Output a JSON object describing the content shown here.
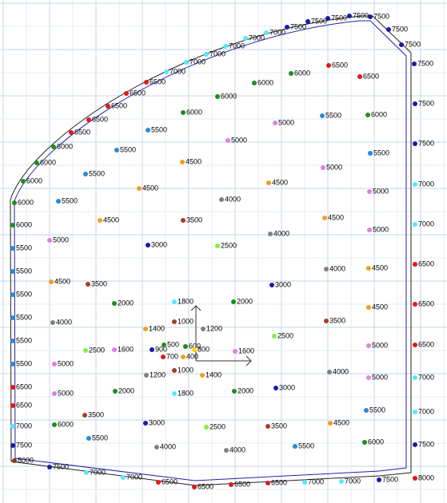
{
  "points": [
    {
      "label": "8000",
      "color": "#8b3a1a"
    },
    {
      "label": "7500",
      "color": "#1a1aa6"
    },
    {
      "label": "7000",
      "color": "#55e8ff"
    },
    {
      "label": "7000",
      "color": "#55e8ff"
    },
    {
      "label": "6500",
      "color": "#e01818"
    },
    {
      "label": "6500",
      "color": "#e01818"
    },
    {
      "label": "6500",
      "color": "#e01818"
    },
    {
      "label": "6500",
      "color": "#e01818"
    },
    {
      "label": "7000",
      "color": "#55e8ff"
    },
    {
      "label": "7000",
      "color": "#55e8ff"
    },
    {
      "label": "7500",
      "color": "#1a1aa6"
    },
    {
      "label": "8000",
      "color": "#e01818"
    },
    {
      "label": "6000",
      "color": "#1e8c1e"
    },
    {
      "label": "5500",
      "color": "#2a88dd"
    },
    {
      "label": "5500",
      "color": "#2a88dd"
    },
    {
      "label": "5500",
      "color": "#2a88dd"
    },
    {
      "label": "5500",
      "color": "#2a88dd"
    },
    {
      "label": "5500",
      "color": "#2a88dd"
    },
    {
      "label": "5500",
      "color": "#2a88dd"
    },
    {
      "label": "6500",
      "color": "#e01818"
    },
    {
      "label": "6500",
      "color": "#e01818"
    },
    {
      "label": "7000",
      "color": "#55e8ff"
    },
    {
      "label": "7500",
      "color": "#1a1aa6"
    },
    {
      "label": "6000",
      "color": "#1e8c1e"
    },
    {
      "label": "6000",
      "color": "#1e8c1e"
    },
    {
      "label": "6000",
      "color": "#1e8c1e"
    },
    {
      "label": "6000",
      "color": "#1e8c1e"
    },
    {
      "label": "6500",
      "color": "#e01818"
    },
    {
      "label": "6500",
      "color": "#e01818"
    },
    {
      "label": "6500",
      "color": "#e01818"
    },
    {
      "label": "6500",
      "color": "#e01818"
    },
    {
      "label": "6500",
      "color": "#e01818"
    },
    {
      "label": "7000",
      "color": "#55e8ff"
    },
    {
      "label": "7000",
      "color": "#55e8ff"
    },
    {
      "label": "7000",
      "color": "#55e8ff"
    },
    {
      "label": "7000",
      "color": "#55e8ff"
    },
    {
      "label": "7000",
      "color": "#55e8ff"
    },
    {
      "label": "7000",
      "color": "#55e8ff"
    },
    {
      "label": "7500",
      "color": "#1a1aa6"
    },
    {
      "label": "7500",
      "color": "#1a1aa6"
    },
    {
      "label": "7500",
      "color": "#1a1aa6"
    },
    {
      "label": "7500",
      "color": "#1a1aa6"
    },
    {
      "label": "7500",
      "color": "#1a1aa6"
    },
    {
      "label": "7500",
      "color": "#1a1aa6"
    },
    {
      "label": "7500",
      "color": "#1a1aa6"
    },
    {
      "label": "7500",
      "color": "#1a1aa6"
    },
    {
      "label": "7500",
      "color": "#1a1aa6"
    },
    {
      "label": "7500",
      "color": "#1a1aa6"
    },
    {
      "label": "7000",
      "color": "#55e8ff"
    },
    {
      "label": "7000",
      "color": "#55e8ff"
    },
    {
      "label": "6500",
      "color": "#e01818"
    },
    {
      "label": "6500",
      "color": "#e01818"
    },
    {
      "label": "6500",
      "color": "#e01818"
    },
    {
      "label": "7000",
      "color": "#55e8ff"
    },
    {
      "label": "7000",
      "color": "#55e8ff"
    },
    {
      "label": "7500",
      "color": "#1a1aa6"
    },
    {
      "label": "6500",
      "color": "#e01818"
    },
    {
      "label": "6500",
      "color": "#e01818"
    },
    {
      "label": "6000",
      "color": "#1e8c1e"
    },
    {
      "label": "6000",
      "color": "#1e8c1e"
    },
    {
      "label": "6000",
      "color": "#1e8c1e"
    },
    {
      "label": "6000",
      "color": "#1e8c1e"
    },
    {
      "label": "6000",
      "color": "#1e8c1e"
    },
    {
      "label": "5500",
      "color": "#2a88dd"
    },
    {
      "label": "5000",
      "color": "#e080e0"
    },
    {
      "label": "5500",
      "color": "#2a88dd"
    },
    {
      "label": "5500",
      "color": "#2a88dd"
    },
    {
      "label": "5000",
      "color": "#e080e0"
    },
    {
      "label": "5500",
      "color": "#2a88dd"
    },
    {
      "label": "5500",
      "color": "#2a88dd"
    },
    {
      "label": "4500",
      "color": "#f0a020"
    },
    {
      "label": "5000",
      "color": "#e080e0"
    },
    {
      "label": "4500",
      "color": "#f0a020"
    },
    {
      "label": "4500",
      "color": "#f0a020"
    },
    {
      "label": "5000",
      "color": "#e080e0"
    },
    {
      "label": "5500",
      "color": "#2a88dd"
    },
    {
      "label": "4000",
      "color": "#808080"
    },
    {
      "label": "4500",
      "color": "#f0a020"
    },
    {
      "label": "3500",
      "color": "#a0402a"
    },
    {
      "label": "4500",
      "color": "#f0a020"
    },
    {
      "label": "5000",
      "color": "#e080e0"
    },
    {
      "label": "4000",
      "color": "#808080"
    },
    {
      "label": "5000",
      "color": "#e080e0"
    },
    {
      "label": "3000",
      "color": "#1a1aa6"
    },
    {
      "label": "2500",
      "color": "#88ee44"
    },
    {
      "label": "4000",
      "color": "#808080"
    },
    {
      "label": "4500",
      "color": "#f0a020"
    },
    {
      "label": "4500",
      "color": "#f0a020"
    },
    {
      "label": "3500",
      "color": "#a0402a"
    },
    {
      "label": "3000",
      "color": "#1a1aa6"
    },
    {
      "label": "2000",
      "color": "#1e8c1e"
    },
    {
      "label": "1800",
      "color": "#55e8ff"
    },
    {
      "label": "2000",
      "color": "#1e8c1e"
    },
    {
      "label": "4500",
      "color": "#f0a020"
    },
    {
      "label": "4000",
      "color": "#808080"
    },
    {
      "label": "1000",
      "color": "#a0402a"
    },
    {
      "label": "1400",
      "color": "#f0a020"
    },
    {
      "label": "1200",
      "color": "#808080"
    },
    {
      "label": "3500",
      "color": "#a0402a"
    },
    {
      "label": "2500",
      "color": "#88ee44"
    },
    {
      "label": "2500",
      "color": "#88ee44"
    },
    {
      "label": "1600",
      "color": "#e080e0"
    },
    {
      "label": "900",
      "color": "#1a1aa6"
    },
    {
      "label": "600",
      "color": "#1e8c1e"
    },
    {
      "label": "800",
      "color": "#ffd700"
    },
    {
      "label": "500",
      "color": "#1e8c1e"
    },
    {
      "label": "700",
      "color": "#e01818"
    },
    {
      "label": "400",
      "color": "#f0a020"
    },
    {
      "label": "1600",
      "color": "#e080e0"
    },
    {
      "label": "5000",
      "color": "#e080e0"
    },
    {
      "label": "5000",
      "color": "#e080e0"
    },
    {
      "label": "4000",
      "color": "#808080"
    },
    {
      "label": "1200",
      "color": "#808080"
    },
    {
      "label": "1000",
      "color": "#a0402a"
    },
    {
      "label": "1400",
      "color": "#f0a020"
    },
    {
      "label": "5000",
      "color": "#e080e0"
    },
    {
      "label": "5000",
      "color": "#e080e0"
    },
    {
      "label": "2000",
      "color": "#1e8c1e"
    },
    {
      "label": "1800",
      "color": "#55e8ff"
    },
    {
      "label": "2000",
      "color": "#1e8c1e"
    },
    {
      "label": "3000",
      "color": "#1a1aa6"
    },
    {
      "label": "5500",
      "color": "#2a88dd"
    },
    {
      "label": "3500",
      "color": "#a0402a"
    },
    {
      "label": "6000",
      "color": "#1e8c1e"
    },
    {
      "label": "3000",
      "color": "#1a1aa6"
    },
    {
      "label": "2500",
      "color": "#88ee44"
    },
    {
      "label": "3500",
      "color": "#a0402a"
    },
    {
      "label": "4500",
      "color": "#f0a020"
    },
    {
      "label": "5500",
      "color": "#2a88dd"
    },
    {
      "label": "4000",
      "color": "#808080"
    },
    {
      "label": "4000",
      "color": "#808080"
    },
    {
      "label": "5500",
      "color": "#2a88dd"
    },
    {
      "label": "6000",
      "color": "#1e8c1e"
    }
  ]
}
